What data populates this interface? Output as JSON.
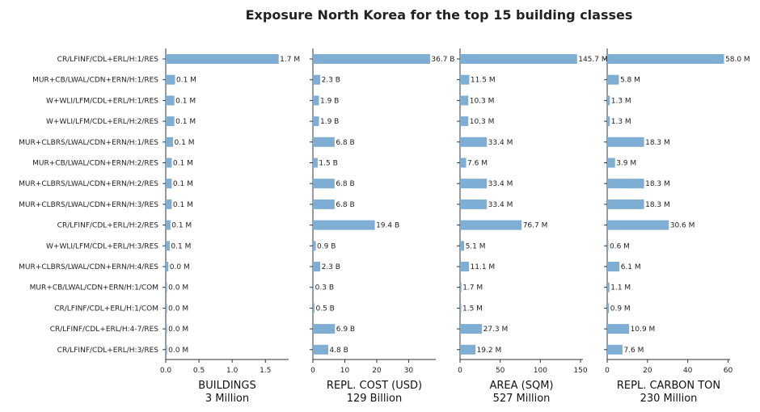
{
  "chart_data": {
    "type": "bar",
    "orientation": "horizontal",
    "title": "Exposure North Korea for the top 15 building classes",
    "bar_color": "#7eaed3",
    "categories": [
      "CR/LFINF/CDL+ERL/H:1/RES",
      "MUR+CB/LWAL/CDN+ERN/H:1/RES",
      "W+WLI/LFM/CDL+ERL/H:1/RES",
      "W+WLI/LFM/CDL+ERL/H:2/RES",
      "MUR+CLBRS/LWAL/CDN+ERN/H:1/RES",
      "MUR+CB/LWAL/CDN+ERN/H:2/RES",
      "MUR+CLBRS/LWAL/CDN+ERN/H:2/RES",
      "MUR+CLBRS/LWAL/CDN+ERN/H:3/RES",
      "CR/LFINF/CDL+ERL/H:2/RES",
      "W+WLI/LFM/CDL+ERL/H:3/RES",
      "MUR+CLBRS/LWAL/CDN+ERN/H:4/RES",
      "MUR+CB/LWAL/CDN+ERN/H:1/COM",
      "CR/LFINF/CDL+ERL/H:1/COM",
      "CR/LFINF/CDL+ERL/H:4-7/RES",
      "CR/LFINF/CDL+ERL/H:3/RES"
    ],
    "panels": [
      {
        "xlabel": "BUILDINGS",
        "subtitle": "3 Million",
        "xlim": [
          0,
          1.85
        ],
        "xticks": [
          "0.0",
          "0.5",
          "1.0",
          "1.5"
        ],
        "xtick_values": [
          0,
          0.5,
          1.0,
          1.5
        ],
        "values": [
          1.7,
          0.14,
          0.13,
          0.13,
          0.11,
          0.09,
          0.09,
          0.09,
          0.07,
          0.06,
          0.04,
          0.02,
          0.02,
          0.02,
          0.02
        ],
        "labels": [
          "1.7 M",
          "0.1 M",
          "0.1 M",
          "0.1 M",
          "0.1 M",
          "0.1 M",
          "0.1 M",
          "0.1 M",
          "0.1 M",
          "0.1 M",
          "0.0 M",
          "0.0 M",
          "0.0 M",
          "0.0 M",
          "0.0 M"
        ]
      },
      {
        "xlabel": "REPL. COST (USD)",
        "subtitle": "129 Billion",
        "xlim": [
          0,
          38.5
        ],
        "xticks": [
          "0",
          "10",
          "20",
          "30"
        ],
        "xtick_values": [
          0,
          10,
          20,
          30
        ],
        "values": [
          36.7,
          2.3,
          1.9,
          1.9,
          6.8,
          1.5,
          6.8,
          6.8,
          19.4,
          0.9,
          2.3,
          0.3,
          0.5,
          6.9,
          4.8
        ],
        "labels": [
          "36.7 B",
          "2.3 B",
          "1.9 B",
          "1.9 B",
          "6.8 B",
          "1.5 B",
          "6.8 B",
          "6.8 B",
          "19.4 B",
          "0.9 B",
          "2.3 B",
          "0.3 B",
          "0.5 B",
          "6.9 B",
          "4.8 B"
        ]
      },
      {
        "xlabel": "AREA (SQM)",
        "subtitle": "527 Million",
        "xlim": [
          0,
          153
        ],
        "xticks": [
          "0",
          "50",
          "100",
          "150"
        ],
        "xtick_values": [
          0,
          50,
          100,
          150
        ],
        "values": [
          145.7,
          11.5,
          10.3,
          10.3,
          33.4,
          7.6,
          33.4,
          33.4,
          76.7,
          5.1,
          11.1,
          1.7,
          1.5,
          27.3,
          19.2
        ],
        "labels": [
          "145.7 M",
          "11.5 M",
          "10.3 M",
          "10.3 M",
          "33.4 M",
          "7.6 M",
          "33.4 M",
          "33.4 M",
          "76.7 M",
          "5.1 M",
          "11.1 M",
          "1.7 M",
          "1.5 M",
          "27.3 M",
          "19.2 M"
        ]
      },
      {
        "xlabel": "REPL. CARBON TON",
        "subtitle": "230 Million",
        "xlim": [
          0,
          61
        ],
        "xticks": [
          "0",
          "20",
          "40",
          "60"
        ],
        "xtick_values": [
          0,
          20,
          40,
          60
        ],
        "values": [
          58.0,
          5.8,
          1.3,
          1.3,
          18.3,
          3.9,
          18.3,
          18.3,
          30.6,
          0.6,
          6.1,
          1.1,
          0.9,
          10.9,
          7.6
        ],
        "labels": [
          "58.0 M",
          "5.8 M",
          "1.3 M",
          "1.3 M",
          "18.3 M",
          "3.9 M",
          "18.3 M",
          "18.3 M",
          "30.6 M",
          "0.6 M",
          "6.1 M",
          "1.1 M",
          "0.9 M",
          "10.9 M",
          "7.6 M"
        ]
      }
    ]
  }
}
